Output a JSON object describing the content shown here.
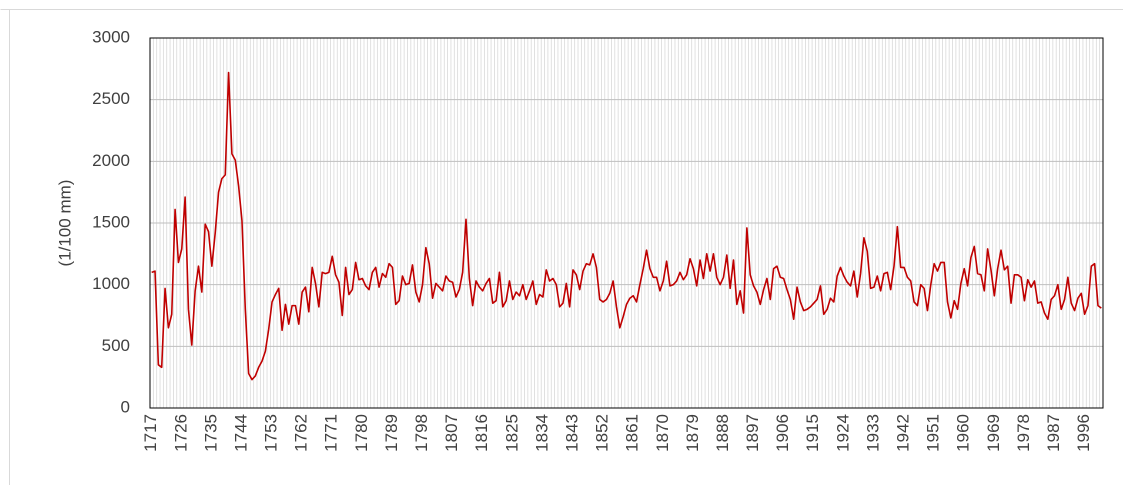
{
  "chart_data": {
    "type": "line",
    "y_label": "(1/100 mm)",
    "categories": [
      "1717",
      null,
      null,
      null,
      null,
      null,
      null,
      null,
      null,
      "1726",
      null,
      null,
      null,
      null,
      null,
      null,
      null,
      null,
      "1735",
      null,
      null,
      null,
      null,
      null,
      null,
      null,
      null,
      "1744",
      null,
      null,
      null,
      null,
      null,
      null,
      null,
      null,
      "1753",
      null,
      null,
      null,
      null,
      null,
      null,
      null,
      null,
      "1762",
      null,
      null,
      null,
      null,
      null,
      null,
      null,
      null,
      "1771",
      null,
      null,
      null,
      null,
      null,
      null,
      null,
      null,
      "1780",
      null,
      null,
      null,
      null,
      null,
      null,
      null,
      null,
      "1789",
      null,
      null,
      null,
      null,
      null,
      null,
      null,
      null,
      "1798",
      null,
      null,
      null,
      null,
      null,
      null,
      null,
      null,
      "1807",
      null,
      null,
      null,
      null,
      null,
      null,
      null,
      null,
      "1816",
      null,
      null,
      null,
      null,
      null,
      null,
      null,
      null,
      "1825",
      null,
      null,
      null,
      null,
      null,
      null,
      null,
      null,
      "1834",
      null,
      null,
      null,
      null,
      null,
      null,
      null,
      null,
      "1843",
      null,
      null,
      null,
      null,
      null,
      null,
      null,
      null,
      "1852",
      null,
      null,
      null,
      null,
      null,
      null,
      null,
      null,
      "1861",
      null,
      null,
      null,
      null,
      null,
      null,
      null,
      null,
      "1870",
      null,
      null,
      null,
      null,
      null,
      null,
      null,
      null,
      "1879",
      null,
      null,
      null,
      null,
      null,
      null,
      null,
      null,
      "1888",
      null,
      null,
      null,
      null,
      null,
      null,
      null,
      null,
      "1897",
      null,
      null,
      null,
      null,
      null,
      null,
      null,
      null,
      "1906",
      null,
      null,
      null,
      null,
      null,
      null,
      null,
      null,
      "1915",
      null,
      null,
      null,
      null,
      null,
      null,
      null,
      null,
      "1924",
      null,
      null,
      null,
      null,
      null,
      null,
      null,
      null,
      "1933",
      null,
      null,
      null,
      null,
      null,
      null,
      null,
      null,
      "1942",
      null,
      null,
      null,
      null,
      null,
      null,
      null,
      null,
      "1951",
      null,
      null,
      null,
      null,
      null,
      null,
      null,
      null,
      "1960",
      null,
      null,
      null,
      null,
      null,
      null,
      null,
      null,
      "1969",
      null,
      null,
      null,
      null,
      null,
      null,
      null,
      null,
      "1978",
      null,
      null,
      null,
      null,
      null,
      null,
      null,
      null,
      "1987",
      null,
      null,
      null,
      null,
      null,
      null,
      null,
      null,
      "1996",
      null,
      null,
      null,
      null,
      null
    ],
    "values": [
      1100,
      1110,
      350,
      330,
      970,
      650,
      760,
      1610,
      1180,
      1290,
      1710,
      800,
      510,
      950,
      1150,
      940,
      1490,
      1430,
      1150,
      1420,
      1750,
      1860,
      1890,
      2720,
      2060,
      2010,
      1800,
      1520,
      800,
      280,
      230,
      260,
      330,
      380,
      460,
      640,
      860,
      920,
      970,
      630,
      840,
      680,
      830,
      830,
      680,
      940,
      980,
      780,
      1140,
      1010,
      820,
      1100,
      1090,
      1100,
      1230,
      1080,
      1020,
      750,
      1140,
      920,
      960,
      1180,
      1040,
      1050,
      990,
      960,
      1100,
      1140,
      980,
      1090,
      1060,
      1170,
      1140,
      840,
      870,
      1070,
      1000,
      1010,
      1160,
      940,
      860,
      1000,
      1300,
      1170,
      890,
      1010,
      980,
      950,
      1070,
      1030,
      1020,
      900,
      960,
      1100,
      1530,
      1050,
      830,
      1030,
      980,
      950,
      1010,
      1050,
      850,
      870,
      1100,
      820,
      870,
      1030,
      880,
      940,
      910,
      1000,
      880,
      950,
      1030,
      840,
      920,
      900,
      1120,
      1030,
      1050,
      1000,
      820,
      850,
      1010,
      820,
      1120,
      1080,
      960,
      1110,
      1170,
      1160,
      1250,
      1140,
      880,
      860,
      880,
      930,
      1030,
      820,
      650,
      740,
      840,
      890,
      910,
      860,
      1000,
      1130,
      1280,
      1130,
      1060,
      1060,
      950,
      1030,
      1190,
      990,
      1000,
      1030,
      1100,
      1040,
      1080,
      1210,
      1130,
      990,
      1200,
      1050,
      1250,
      1110,
      1250,
      1060,
      1000,
      1060,
      1240,
      970,
      1200,
      840,
      950,
      770,
      1460,
      1080,
      990,
      940,
      840,
      960,
      1050,
      880,
      1130,
      1150,
      1060,
      1050,
      960,
      880,
      720,
      980,
      860,
      790,
      800,
      820,
      850,
      880,
      990,
      760,
      800,
      890,
      860,
      1070,
      1140,
      1070,
      1020,
      990,
      1110,
      900,
      1090,
      1380,
      1270,
      970,
      980,
      1070,
      950,
      1090,
      1100,
      960,
      1150,
      1470,
      1140,
      1140,
      1060,
      1030,
      860,
      830,
      1000,
      970,
      790,
      1000,
      1170,
      1110,
      1180,
      1180,
      860,
      730,
      870,
      800,
      1010,
      1130,
      990,
      1220,
      1310,
      1090,
      1080,
      950,
      1290,
      1120,
      910,
      1130,
      1280,
      1120,
      1150,
      850,
      1080,
      1080,
      1060,
      870,
      1040,
      980,
      1030,
      850,
      860,
      770,
      720,
      880,
      910,
      1000,
      800,
      880,
      1060,
      850,
      790,
      890,
      930,
      760,
      830,
      1150,
      1170,
      830,
      810
    ],
    "color": "#c00000",
    "ylim": [
      0,
      3000
    ],
    "yticks": [
      0,
      500,
      1000,
      1500,
      2000,
      2500,
      3000
    ],
    "grid": true,
    "x_grid": true
  }
}
